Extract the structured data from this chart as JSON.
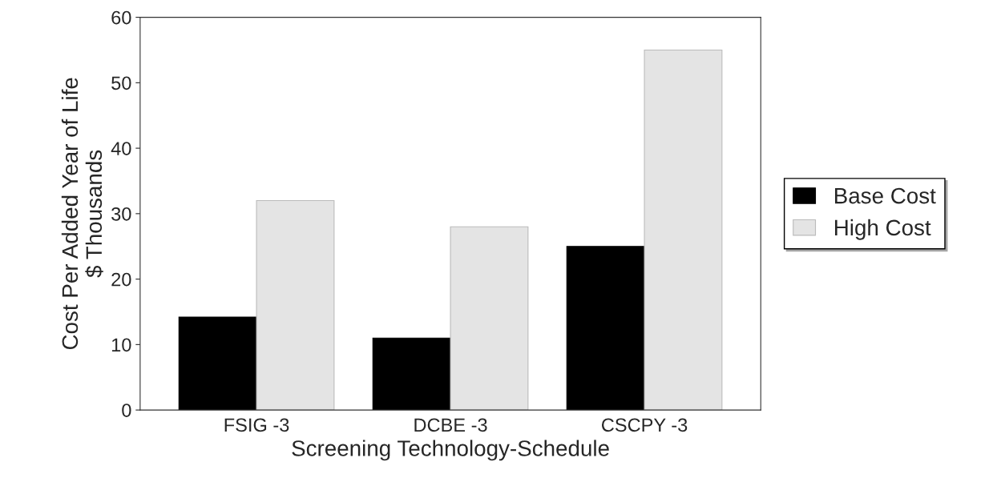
{
  "chart_data": {
    "type": "bar",
    "xlabel": "Screening Technology-Schedule",
    "ylabel": "Cost Per Added Year of Life\n$ Thousands",
    "categories": [
      "FSIG -3",
      "DCBE -3",
      "CSCPY -3"
    ],
    "series": [
      {
        "name": "Base Cost",
        "color": "#000000",
        "values": [
          14.2,
          11,
          25
        ]
      },
      {
        "name": "High Cost",
        "color": "#e4e4e4",
        "values": [
          32,
          28,
          55
        ]
      }
    ],
    "ylim": [
      0,
      60
    ],
    "yticks": [
      0,
      10,
      20,
      30,
      40,
      50,
      60
    ],
    "grid": false,
    "legend": "right"
  }
}
